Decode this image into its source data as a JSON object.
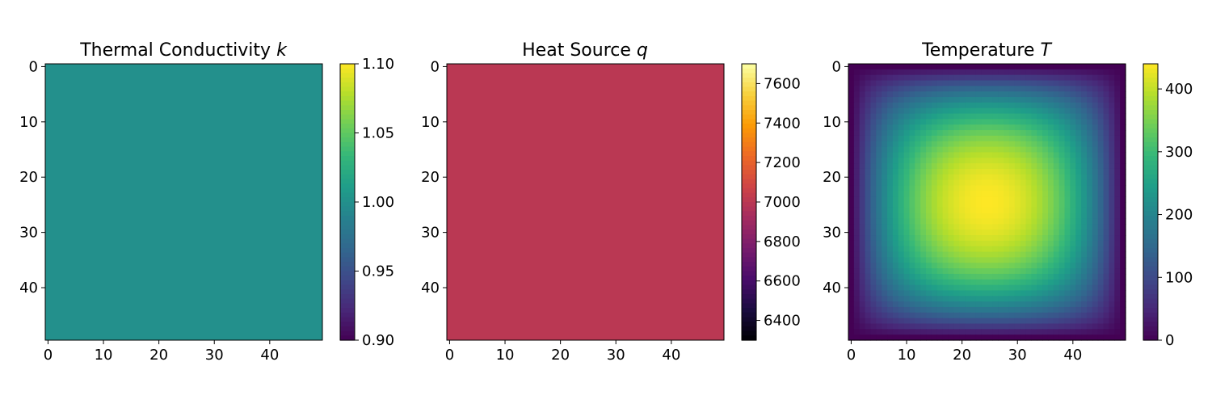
{
  "chart_data": [
    {
      "type": "heatmap",
      "title": "Thermal Conductivity",
      "title_symbol": "k",
      "grid_size": 50,
      "field": "constant",
      "value": 1.0,
      "x_ticks": [
        0,
        10,
        20,
        30,
        40
      ],
      "y_ticks": [
        0,
        10,
        20,
        30,
        40
      ],
      "colormap": "viridis",
      "colorbar": {
        "min": 0.9,
        "max": 1.1,
        "ticks": [
          "0.90",
          "0.95",
          "1.00",
          "1.05",
          "1.10"
        ]
      }
    },
    {
      "type": "heatmap",
      "title": "Heat Source",
      "title_symbol": "q",
      "grid_size": 50,
      "field": "constant",
      "value": 7000,
      "x_ticks": [
        0,
        10,
        20,
        30,
        40
      ],
      "y_ticks": [
        0,
        10,
        20,
        30,
        40
      ],
      "colormap": "inferno",
      "colorbar": {
        "min": 6300,
        "max": 7700,
        "ticks": [
          "6400",
          "6600",
          "6800",
          "7000",
          "7200",
          "7400",
          "7600"
        ]
      }
    },
    {
      "type": "heatmap",
      "title": "Temperature",
      "title_symbol": "T",
      "grid_size": 50,
      "field": "poisson",
      "value_max": 440,
      "x_ticks": [
        0,
        10,
        20,
        30,
        40
      ],
      "y_ticks": [
        0,
        10,
        20,
        30,
        40
      ],
      "colormap": "viridis",
      "colorbar": {
        "min": 0,
        "max": 440,
        "ticks": [
          "0",
          "100",
          "200",
          "300",
          "400"
        ]
      }
    }
  ]
}
